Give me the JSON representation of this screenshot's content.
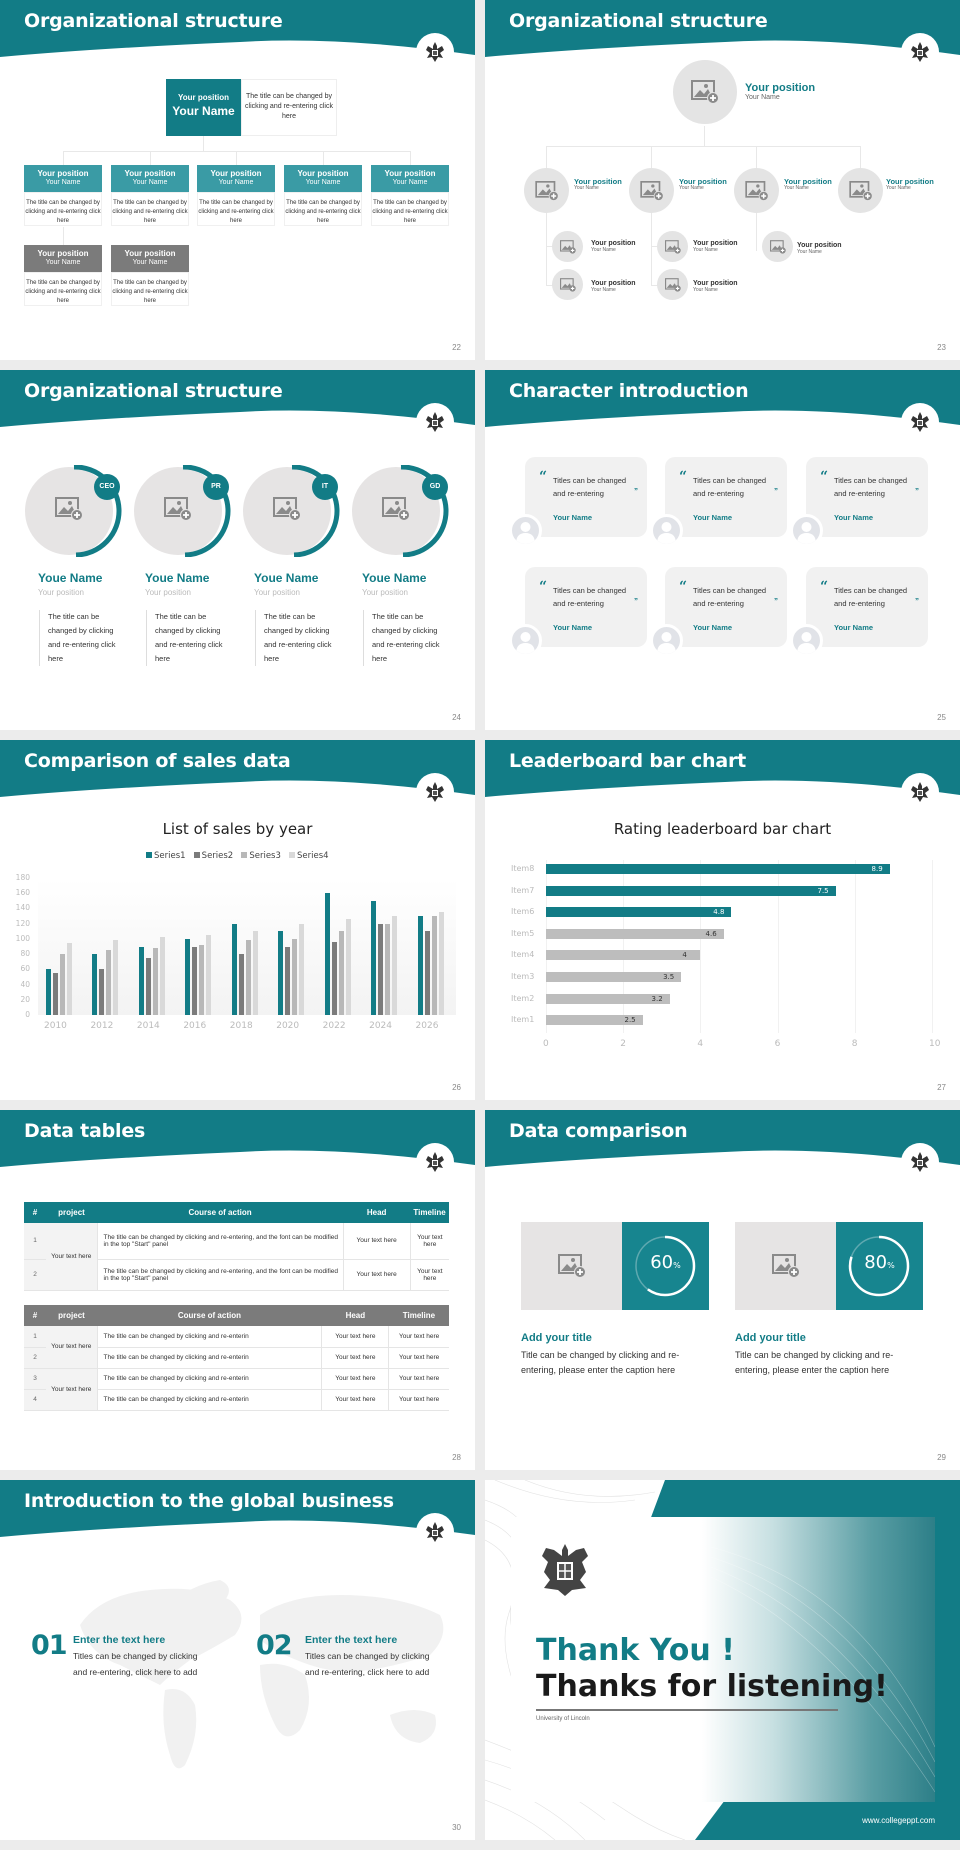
{
  "theme": {
    "teal": "#127c86",
    "teal_light": "#3a9ba5",
    "gray_dark": "#7b7b7b",
    "gray_mid": "#b8b8b8",
    "gray_light": "#d9d9d9"
  },
  "slides": {
    "s22": {
      "title": "Organizational structure",
      "page": "22",
      "top": {
        "position": "Your position",
        "name": "Your Name",
        "desc": "The title can be changed by clicking and re-entering click here"
      },
      "cards": [
        {
          "position": "Your position",
          "name": "Your Name",
          "desc": "The title can be changed by clicking and re-entering click here"
        },
        {
          "position": "Your position",
          "name": "Your Name",
          "desc": "The title can be changed by clicking and re-entering click here"
        },
        {
          "position": "Your position",
          "name": "Your Name",
          "desc": "The title can be changed by clicking and re-entering click here"
        },
        {
          "position": "Your position",
          "name": "Your Name",
          "desc": "The title can be changed by clicking and re-entering click here"
        },
        {
          "position": "Your position",
          "name": "Your Name",
          "desc": "The title can be changed by clicking and re-entering click here"
        },
        {
          "position": "Your position",
          "name": "Your Name",
          "desc": "The title can be changed by clicking and re-entering click here"
        },
        {
          "position": "Your position",
          "name": "Your Name",
          "desc": "The title can be changed by clicking and re-entering click here"
        }
      ]
    },
    "s23": {
      "title": "Organizational structure",
      "page": "23",
      "top": {
        "position": "Your position",
        "name": "Your Name"
      },
      "level2": [
        {
          "position": "Your position",
          "name": "Your Name"
        },
        {
          "position": "Your position",
          "name": "Your Name"
        },
        {
          "position": "Your position",
          "name": "Your Name"
        },
        {
          "position": "Your position",
          "name": "Your Name"
        }
      ],
      "level3": [
        {
          "position": "Your position",
          "name": "Your Name"
        },
        {
          "position": "Your position",
          "name": "Your Name"
        },
        {
          "position": "Your position",
          "name": "Your Name"
        },
        {
          "position": "Your position",
          "name": "Your Name"
        },
        {
          "position": "Your position",
          "name": "Your Name"
        }
      ]
    },
    "s24": {
      "title": "Organizational structure",
      "page": "24",
      "people": [
        {
          "badge": "CEO",
          "name": "Youe Name",
          "position": "Your position",
          "desc": "The title can be changed by clicking and re-entering click here"
        },
        {
          "badge": "PR",
          "name": "Youe Name",
          "position": "Your position",
          "desc": "The title can be changed by clicking and re-entering click here"
        },
        {
          "badge": "IT",
          "name": "Youe Name",
          "position": "Your position",
          "desc": "The title can be changed by clicking and re-entering click here"
        },
        {
          "badge": "GD",
          "name": "Youe Name",
          "position": "Your position",
          "desc": "The title can be changed by clicking and re-entering click here"
        }
      ]
    },
    "s25": {
      "title": "Character introduction",
      "page": "25",
      "open_quote": "“",
      "close_quote": "”",
      "cards": [
        {
          "text": "Titles can be changed and re-entering",
          "name": "Your Name"
        },
        {
          "text": "Titles can be changed and re-entering",
          "name": "Your Name"
        },
        {
          "text": "Titles can be changed and re-entering",
          "name": "Your Name"
        },
        {
          "text": "Titles can be changed and re-entering",
          "name": "Your Name"
        },
        {
          "text": "Titles can be changed and re-entering",
          "name": "Your Name"
        },
        {
          "text": "Titles can be changed and re-entering",
          "name": "Your Name"
        }
      ]
    },
    "s26": {
      "title": "Comparison of sales data",
      "page": "26"
    },
    "s27": {
      "title": "Leaderboard bar chart",
      "page": "27"
    },
    "s28": {
      "title": "Data tables",
      "page": "28",
      "headers": [
        "#",
        "project",
        "Course of action",
        "Head",
        "Timeline"
      ],
      "table1": {
        "project": "Your text here",
        "rows": [
          {
            "num": "1",
            "course": "The title can be changed by clicking and re-entering, and the font can be modified in the top \"Start\" panel",
            "head": "Your text here",
            "timeline": "Your text here"
          },
          {
            "num": "2",
            "course": "The title can be changed by clicking and re-entering, and the font can be modified in the top \"Start\" panel",
            "head": "Your text here",
            "timeline": "Your text here"
          }
        ]
      },
      "table2": {
        "projects": [
          "Your text here",
          "Your text here"
        ],
        "rows": [
          {
            "num": "1",
            "course": "The title can be changed by clicking and re-enterin",
            "head": "Your text here",
            "timeline": "Your text here"
          },
          {
            "num": "2",
            "course": "The title can be changed by clicking and re-enterin",
            "head": "Your text here",
            "timeline": "Your text here"
          },
          {
            "num": "3",
            "course": "The title can be changed by clicking and re-enterin",
            "head": "Your text here",
            "timeline": "Your text here"
          },
          {
            "num": "4",
            "course": "The title can be changed by clicking and re-enterin",
            "head": "Your text here",
            "timeline": "Your text here"
          }
        ]
      }
    },
    "s29": {
      "title": "Data comparison",
      "page": "29",
      "items": [
        {
          "value": "60",
          "unit": "%",
          "percent": 60,
          "title": "Add your title",
          "desc": "Title can be changed by clicking and re-entering, please enter the caption here"
        },
        {
          "value": "80",
          "unit": "%",
          "percent": 80,
          "title": "Add your title",
          "desc": "Title can be changed by clicking and re-entering, please enter the caption here"
        }
      ]
    },
    "s30": {
      "title": "Introduction to the global business",
      "page": "30",
      "items": [
        {
          "num": "01",
          "title": "Enter the text here",
          "desc": "Titles can be changed by clicking and re-entering, click here to add"
        },
        {
          "num": "02",
          "title": "Enter the text here",
          "desc": "Titles can be changed by clicking and re-entering, click here to add"
        }
      ]
    },
    "s31": {
      "thank_you": "Thank You !",
      "thanks": "Thanks for listening!",
      "university": "University of Lincoln",
      "website": "www.collegeppt.com"
    }
  },
  "chart_data": [
    {
      "type": "bar",
      "title": "List of sales by year",
      "categories": [
        "2010",
        "2012",
        "2014",
        "2016",
        "2018",
        "2020",
        "2022",
        "2024",
        "2026"
      ],
      "series": [
        {
          "name": "Series1",
          "color": "#127c86",
          "values": [
            60,
            80,
            90,
            100,
            120,
            110,
            160,
            150,
            130
          ]
        },
        {
          "name": "Series2",
          "color": "#7b7b7b",
          "values": [
            55,
            60,
            75,
            90,
            80,
            90,
            96,
            120,
            110
          ]
        },
        {
          "name": "Series3",
          "color": "#b8b8b8",
          "values": [
            80,
            86,
            88,
            92,
            98,
            100,
            110,
            120,
            130
          ]
        },
        {
          "name": "Series4",
          "color": "#d9d9d9",
          "values": [
            95,
            99,
            102,
            105,
            110,
            120,
            126,
            130,
            135
          ]
        }
      ],
      "xlabel": "",
      "ylabel": "",
      "ylim": [
        0,
        180
      ],
      "yticks": [
        0,
        20,
        40,
        60,
        80,
        100,
        120,
        140,
        160,
        180
      ],
      "legend_position": "top",
      "grid": false
    },
    {
      "type": "bar",
      "orientation": "horizontal",
      "title": "Rating leaderboard bar chart",
      "categories": [
        "Item8",
        "Item7",
        "Item6",
        "Item5",
        "Item4",
        "Item3",
        "Item2",
        "Item1"
      ],
      "values": [
        8.9,
        7.5,
        4.8,
        4.6,
        4,
        3.5,
        3.2,
        2.5
      ],
      "labels": [
        "8.9",
        "7.5",
        "4.8",
        "4.6",
        "4",
        "3.5",
        "3.2",
        "2.5"
      ],
      "highlight_top": 3,
      "xlim": [
        0,
        10
      ],
      "xticks": [
        0,
        2,
        4,
        6,
        8,
        10
      ],
      "grid": true
    }
  ]
}
